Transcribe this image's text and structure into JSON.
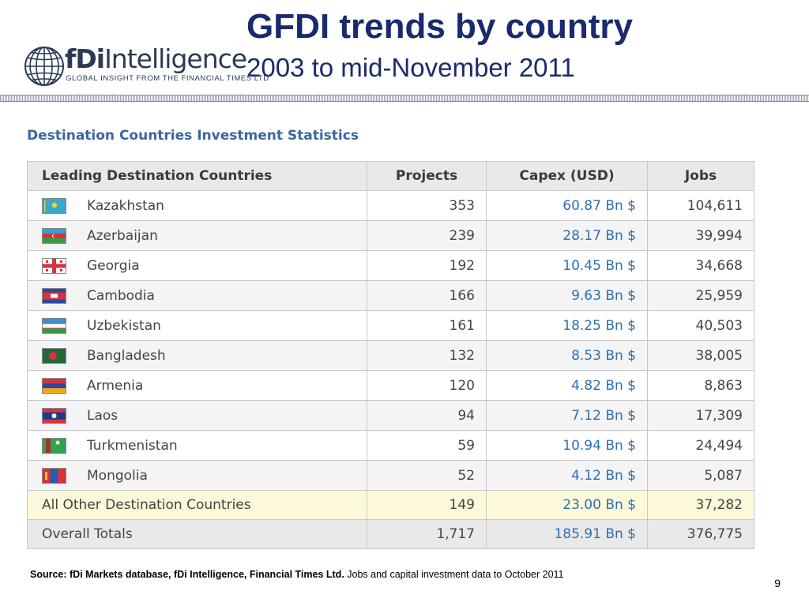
{
  "logo": {
    "brand_bold": "fDi",
    "brand_light": "Intelligence",
    "tagline": "GLOBAL INSIGHT FROM THE FINANCIAL TIMES LTD"
  },
  "header": {
    "title": "GFDI trends by country",
    "subtitle": "2003 to mid-November 2011"
  },
  "section_title": "Destination Countries Investment Statistics",
  "table": {
    "columns": [
      "Leading Destination Countries",
      "Projects",
      "Capex (USD)",
      "Jobs"
    ],
    "rows": [
      {
        "country": "Kazakhstan",
        "projects": "353",
        "capex": "60.87 Bn $",
        "jobs": "104,611"
      },
      {
        "country": "Azerbaijan",
        "projects": "239",
        "capex": "28.17 Bn $",
        "jobs": "39,994"
      },
      {
        "country": "Georgia",
        "projects": "192",
        "capex": "10.45 Bn $",
        "jobs": "34,668"
      },
      {
        "country": "Cambodia",
        "projects": "166",
        "capex": "9.63 Bn $",
        "jobs": "25,959"
      },
      {
        "country": "Uzbekistan",
        "projects": "161",
        "capex": "18.25 Bn $",
        "jobs": "40,503"
      },
      {
        "country": "Bangladesh",
        "projects": "132",
        "capex": "8.53 Bn $",
        "jobs": "38,005"
      },
      {
        "country": "Armenia",
        "projects": "120",
        "capex": "4.82 Bn $",
        "jobs": "8,863"
      },
      {
        "country": "Laos",
        "projects": "94",
        "capex": "7.12 Bn $",
        "jobs": "17,309"
      },
      {
        "country": "Turkmenistan",
        "projects": "59",
        "capex": "10.94 Bn $",
        "jobs": "24,494"
      },
      {
        "country": "Mongolia",
        "projects": "52",
        "capex": "4.12 Bn $",
        "jobs": "5,087"
      }
    ],
    "other": {
      "label": "All Other Destination Countries",
      "projects": "149",
      "capex": "23.00 Bn $",
      "jobs": "37,282"
    },
    "total": {
      "label": "Overall Totals",
      "projects": "1,717",
      "capex": "185.91 Bn $",
      "jobs": "376,775"
    }
  },
  "footer": {
    "source_bold": "Source: fDi Markets database, fDi Intelligence, Financial Times Ltd.",
    "source_rest": " Jobs and capital investment data to October 2011",
    "page_number": "9"
  },
  "colors": {
    "title": "#1a2a6e",
    "section_title": "#3a66a0",
    "capex_link": "#2f6fb0",
    "header_row": "#e9e9e9",
    "other_row": "#fbf9d9"
  }
}
